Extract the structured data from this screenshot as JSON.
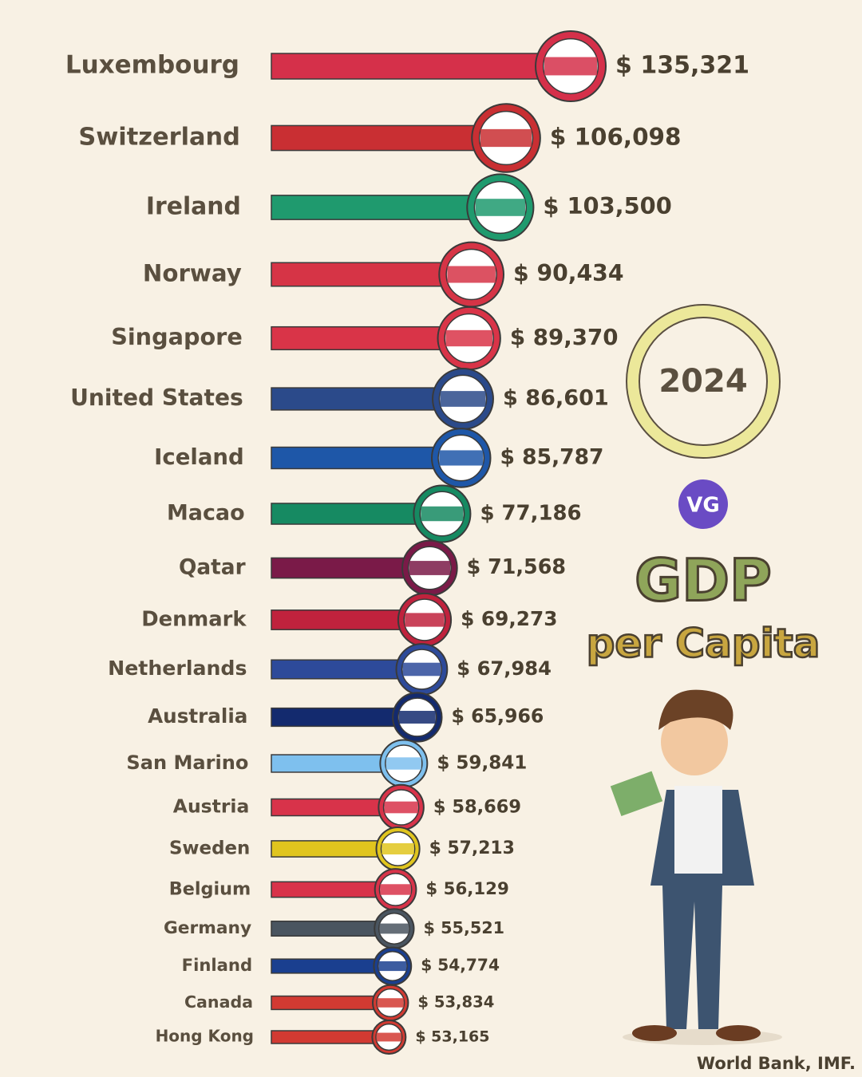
{
  "chart_data": {
    "type": "bar",
    "orientation": "horizontal",
    "title": "GDP",
    "subtitle": "per Capita",
    "year": "2024",
    "logo": "VG",
    "source": "World Bank, IMF.",
    "categories": [
      "Luxembourg",
      "Switzerland",
      "Ireland",
      "Norway",
      "Singapore",
      "United States",
      "Iceland",
      "Macao",
      "Qatar",
      "Denmark",
      "Netherlands",
      "Australia",
      "San Marino",
      "Austria",
      "Sweden",
      "Belgium",
      "Germany",
      "Finland",
      "Canada",
      "Hong Kong"
    ],
    "values": [
      135321,
      106098,
      103500,
      90434,
      89370,
      86601,
      85787,
      77186,
      71568,
      69273,
      67984,
      65966,
      59841,
      58669,
      57213,
      56129,
      55521,
      54774,
      53834,
      53165
    ],
    "value_labels": [
      "$ 135,321",
      "$ 106,098",
      "$ 103,500",
      "$ 90,434",
      "$ 89,370",
      "$ 86,601",
      "$ 85,787",
      "$ 77,186",
      "$ 71,568",
      "$ 69,273",
      "$ 67,984",
      "$ 65,966",
      "$ 59,841",
      "$ 58,669",
      "$ 57,213",
      "$ 56,129",
      "$ 55,521",
      "$ 54,774",
      "$ 53,834",
      "$ 53,165"
    ],
    "colors": [
      "#d5304a",
      "#c92f33",
      "#1f9a6e",
      "#d63446",
      "#d93448",
      "#2b4a8a",
      "#1e57a8",
      "#168a62",
      "#7a1a48",
      "#c0223d",
      "#2d4a9a",
      "#132a6e",
      "#7ec0ee",
      "#d8334a",
      "#e0c51e",
      "#d8334a",
      "#4a5560",
      "#1a3f8f",
      "#d23a32",
      "#d23a32"
    ],
    "xlim": [
      0,
      140000
    ]
  }
}
